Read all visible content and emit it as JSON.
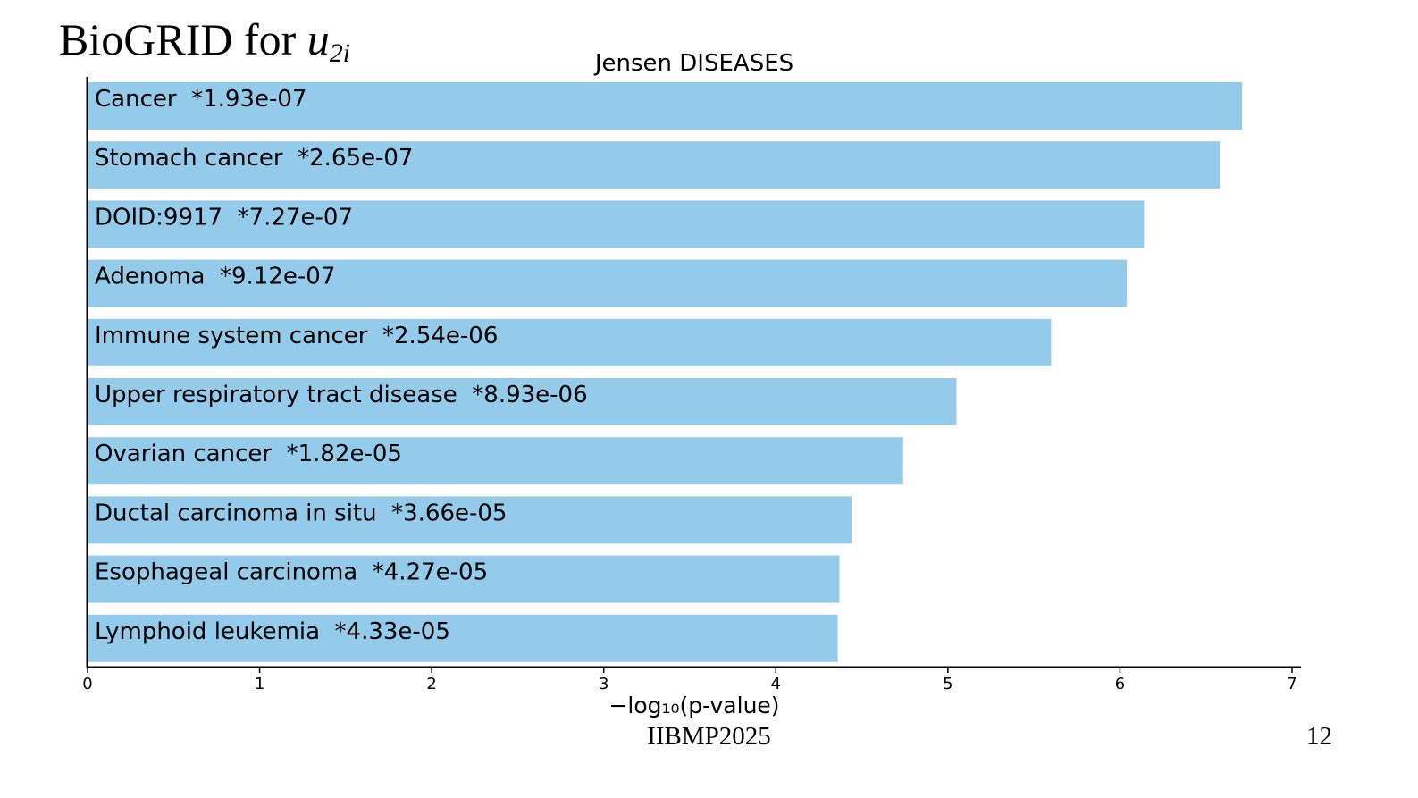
{
  "slide": {
    "title_prefix": "BioGRID for ",
    "title_var": "u",
    "title_sub": "2i",
    "footer": "IIBMP2025",
    "page_number": "12"
  },
  "chart_data": {
    "type": "bar",
    "orientation": "horizontal",
    "title": "Jensen DISEASES",
    "xlabel": "−log₁₀(p-value)",
    "ylabel": "",
    "xlim": [
      0,
      7
    ],
    "xticks": [
      "0",
      "1",
      "2",
      "3",
      "4",
      "5",
      "6",
      "7"
    ],
    "grid": false,
    "bar_color": "#95cbea",
    "categories": [
      "Cancer  *1.93e-07",
      "Stomach cancer  *2.65e-07",
      "DOID:9917  *7.27e-07",
      "Adenoma  *9.12e-07",
      "Immune system cancer  *2.54e-06",
      "Upper respiratory tract disease  *8.93e-06",
      "Ovarian cancer  *1.82e-05",
      "Ductal carcinoma in situ  *3.66e-05",
      "Esophageal carcinoma  *4.27e-05",
      "Lymphoid leukemia  *4.33e-05"
    ],
    "values": [
      6.71,
      6.58,
      6.14,
      6.04,
      5.6,
      5.05,
      4.74,
      4.44,
      4.37,
      4.36
    ]
  }
}
